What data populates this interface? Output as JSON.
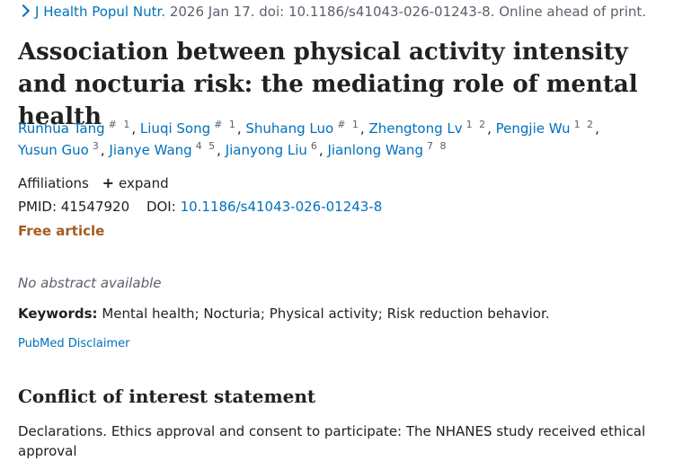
{
  "citation": {
    "journal": "J Health Popul Nutr.",
    "details": "2026 Jan 17. doi: 10.1186/s41043-026-01243-8. Online ahead of print."
  },
  "title": "Association between physical activity intensity and nocturia risk: the mediating role of mental health",
  "authors": [
    {
      "name": "Runhua Tang",
      "sup": "# 1"
    },
    {
      "name": "Liuqi Song",
      "sup": "# 1"
    },
    {
      "name": "Shuhang Luo",
      "sup": "# 1"
    },
    {
      "name": "Zhengtong Lv",
      "sup": "1 2"
    },
    {
      "name": "Pengjie Wu",
      "sup": "1 2"
    },
    {
      "name": "Yusun Guo",
      "sup": "3"
    },
    {
      "name": "Jianye Wang",
      "sup": "4 5"
    },
    {
      "name": "Jianyong Liu",
      "sup": "6"
    },
    {
      "name": "Jianlong Wang",
      "sup": "7 8"
    }
  ],
  "affiliations": {
    "label": "Affiliations",
    "expand_label": "expand"
  },
  "ids": {
    "pmid_label": "PMID:",
    "pmid": "41547920",
    "doi_label": "DOI:",
    "doi": "10.1186/s41043-026-01243-8"
  },
  "free_article": "Free article",
  "no_abstract": "No abstract available",
  "keywords": {
    "label": "Keywords:",
    "value": "Mental health; Nocturia; Physical activity; Risk reduction behavior."
  },
  "disclaimer": "PubMed Disclaimer",
  "coi": {
    "title": "Conflict of interest statement",
    "text": "Declarations. Ethics approval and consent to participate: The NHANES study received ethical approval"
  }
}
